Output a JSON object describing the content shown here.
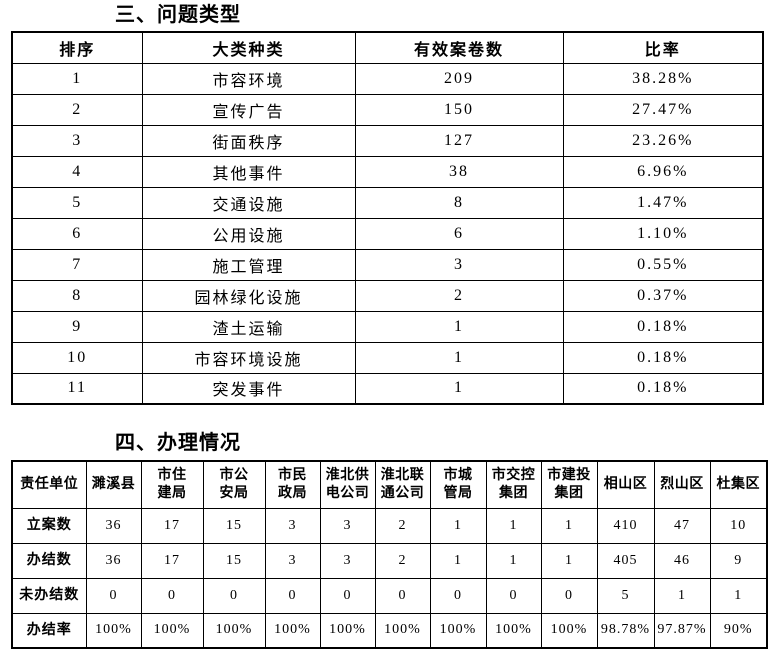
{
  "page": {
    "background_color": "#ffffff",
    "text_color": "#000000",
    "border_color": "#000000"
  },
  "section_problem_types": {
    "title": "三、问题类型",
    "table": {
      "headers": [
        "排序",
        "大类种类",
        "有效案卷数",
        "比率"
      ],
      "rows": [
        [
          "1",
          "市容环境",
          "209",
          "38.28%"
        ],
        [
          "2",
          "宣传广告",
          "150",
          "27.47%"
        ],
        [
          "3",
          "街面秩序",
          "127",
          "23.26%"
        ],
        [
          "4",
          "其他事件",
          "38",
          "6.96%"
        ],
        [
          "5",
          "交通设施",
          "8",
          "1.47%"
        ],
        [
          "6",
          "公用设施",
          "6",
          "1.10%"
        ],
        [
          "7",
          "施工管理",
          "3",
          "0.55%"
        ],
        [
          "8",
          "园林绿化设施",
          "2",
          "0.37%"
        ],
        [
          "9",
          "渣土运输",
          "1",
          "0.18%"
        ],
        [
          "10",
          "市容环境设施",
          "1",
          "0.18%"
        ],
        [
          "11",
          "突发事件",
          "1",
          "0.18%"
        ]
      ]
    }
  },
  "section_handling": {
    "title": "四、办理情况",
    "table": {
      "corner_label": "责任单位",
      "columns": [
        "濉溪县",
        "市住建局",
        "市公安局",
        "市民政局",
        "淮北供电公司",
        "淮北联通公司",
        "市城管局",
        "市交控集团",
        "市建投集团",
        "相山区",
        "烈山区",
        "杜集区"
      ],
      "rows": [
        {
          "label": "立案数",
          "values": [
            "36",
            "17",
            "15",
            "3",
            "3",
            "2",
            "1",
            "1",
            "1",
            "410",
            "47",
            "10"
          ]
        },
        {
          "label": "办结数",
          "values": [
            "36",
            "17",
            "15",
            "3",
            "3",
            "2",
            "1",
            "1",
            "1",
            "405",
            "46",
            "9"
          ]
        },
        {
          "label": "未办结数",
          "values": [
            "0",
            "0",
            "0",
            "0",
            "0",
            "0",
            "0",
            "0",
            "0",
            "5",
            "1",
            "1"
          ]
        },
        {
          "label": "办结率",
          "values": [
            "100%",
            "100%",
            "100%",
            "100%",
            "100%",
            "100%",
            "100%",
            "100%",
            "100%",
            "98.78%",
            "97.87%",
            "90%"
          ]
        }
      ]
    }
  }
}
